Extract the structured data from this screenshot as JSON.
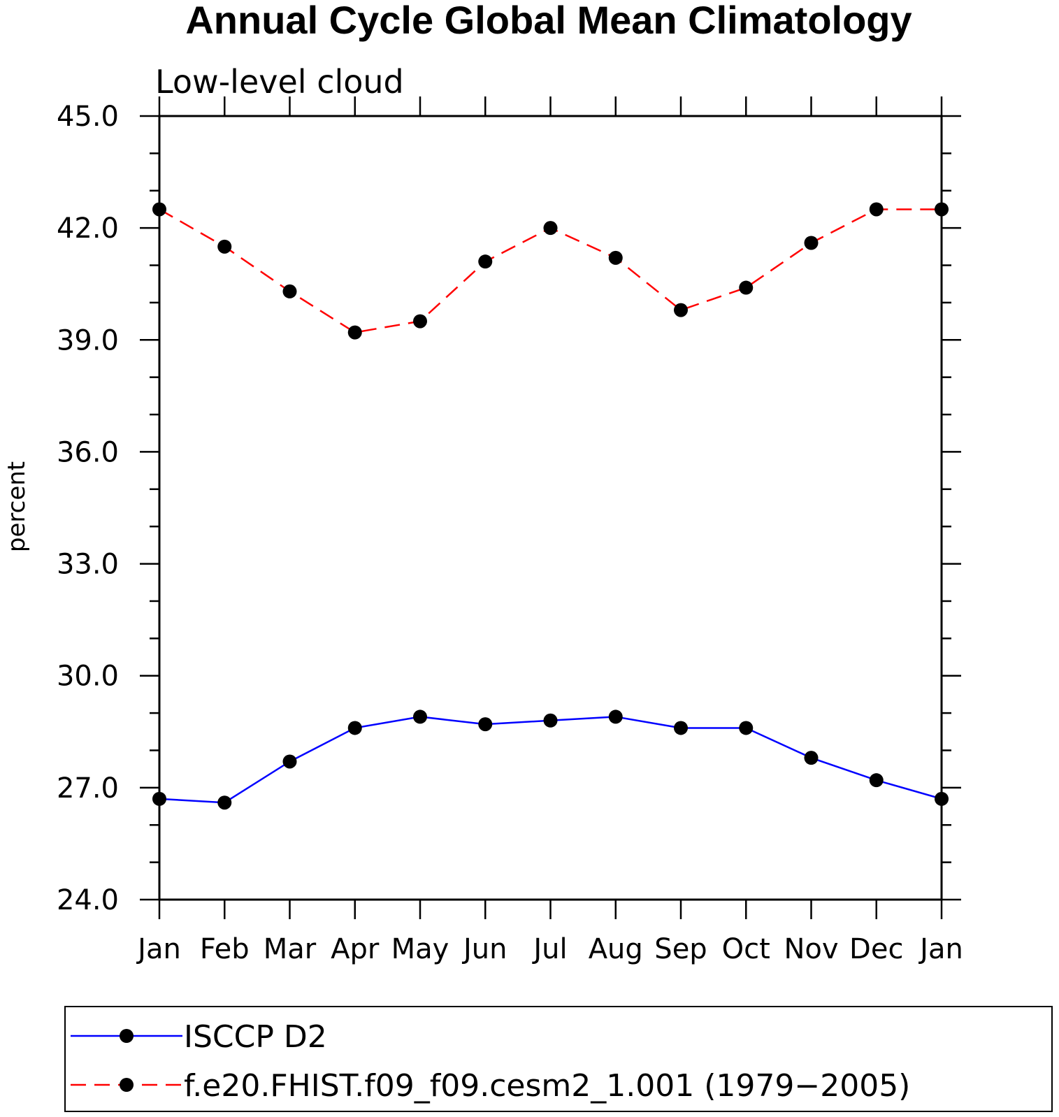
{
  "chart_data": {
    "type": "line",
    "title": "Annual Cycle Global Mean Climatology",
    "subtitle": "Low-level cloud",
    "xlabel": "",
    "ylabel": "percent",
    "ylim": [
      24.0,
      45.0
    ],
    "yticks": [
      "24.0",
      "27.0",
      "30.0",
      "33.0",
      "36.0",
      "39.0",
      "42.0",
      "45.0"
    ],
    "categories": [
      "Jan",
      "Feb",
      "Mar",
      "Apr",
      "May",
      "Jun",
      "Jul",
      "Aug",
      "Sep",
      "Oct",
      "Nov",
      "Dec",
      "Jan"
    ],
    "series": [
      {
        "name": "ISCCP D2",
        "color": "#0000ff",
        "dash": "solid",
        "values": [
          26.7,
          26.6,
          27.7,
          28.6,
          28.9,
          28.7,
          28.8,
          28.9,
          28.6,
          28.6,
          27.8,
          27.2,
          26.7
        ]
      },
      {
        "name": "f.e20.FHIST.f09_f09.cesm2_1.001 (1979−2005)",
        "color": "#ff0000",
        "dash": "dashed",
        "values": [
          42.5,
          41.5,
          40.3,
          39.2,
          39.5,
          41.1,
          42.0,
          41.2,
          39.8,
          40.4,
          41.6,
          42.5,
          42.5
        ]
      }
    ],
    "legend_position": "bottom"
  }
}
